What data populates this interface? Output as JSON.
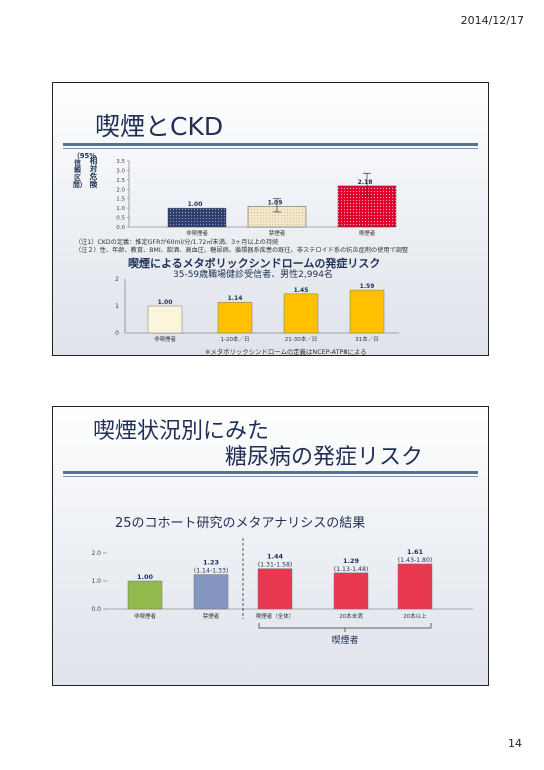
{
  "page": {
    "date": "2014/12/17",
    "number": "14"
  },
  "slide1": {
    "title": "喫煙とCKD",
    "y_axis_label_main": "相対危険",
    "y_axis_label_paren": "（95%信頼区間）",
    "notes": [
      "（注1）CKDの定義：推定GFRが60ml/分/1.72㎡未満、3ヶ月以上の持続",
      "（注２）性、年齢、教育、BMI、飲酒、高血圧、糖尿病、循環器系疾患の既往、非ステロイド系の抗炎症剤の使用で調整"
    ],
    "subtitle": "喫煙によるメタボリックシンドロームの発症リスク",
    "subtitle2": "35-59歳職場健診受信者、男性2,994名",
    "footnote": "※メタボリックシンドロームの定義はNCEP-ATPⅢによる"
  },
  "slide2": {
    "title_line1": "喫煙状況別にみた",
    "title_line2": "糖尿病の発症リスク",
    "subtitle": "25のコホート研究のメタアナリシスの結果",
    "group_label": "喫煙者"
  },
  "chart_data": [
    {
      "type": "bar",
      "title": "喫煙とCKD",
      "categories": [
        "非喫煙者",
        "禁煙者",
        "喫煙者"
      ],
      "values": [
        1.0,
        1.09,
        2.18
      ],
      "value_labels": [
        "1.00",
        "1.09",
        "2.18"
      ],
      "error_bars": [
        null,
        [
          0.8,
          1.5
        ],
        [
          1.65,
          2.85
        ]
      ],
      "yticks": [
        "0.0",
        "0.5",
        "1.0",
        "1.5",
        "2.0",
        "2.5",
        "3.0",
        "3.5"
      ],
      "ylim": [
        0,
        3.5
      ],
      "colors": [
        "#2e3d6b",
        "#f3e6c8",
        "#e0002a"
      ],
      "patterns": [
        "dots",
        "dots",
        "dots"
      ]
    },
    {
      "type": "bar",
      "title": "喫煙によるメタボリックシンドロームの発症リスク",
      "categories": [
        "非喫煙者",
        "1-20本／日",
        "21-30本／日",
        "31本／日"
      ],
      "values": [
        1.0,
        1.14,
        1.45,
        1.59
      ],
      "value_labels": [
        "1.00",
        "1.14",
        "1.45",
        "1.59"
      ],
      "yticks": [
        "0",
        "1",
        "2"
      ],
      "ylim": [
        0,
        2
      ],
      "colors": [
        "#fbf5dc",
        "#ffc000",
        "#ffc000",
        "#ffc000"
      ]
    },
    {
      "type": "bar",
      "title": "25のコホート研究のメタアナリシスの結果",
      "categories": [
        "非喫煙者",
        "禁煙者",
        "喫煙者（全体）",
        "20本未満",
        "20本以上"
      ],
      "values": [
        1.0,
        1.23,
        1.44,
        1.29,
        1.61
      ],
      "value_labels": [
        "1.00",
        "1.23",
        "1.44",
        "1.29",
        "1.61"
      ],
      "ci_labels": [
        "",
        "(1.14-1.33)",
        "(1.31-1.58)",
        "(1.13-1.48)",
        "(1.43-1.80)"
      ],
      "yticks": [
        "0.0",
        "1.0",
        "2.0"
      ],
      "ylim": [
        0,
        2.0
      ],
      "colors": [
        "#92b94b",
        "#8496bf",
        "#e8384f",
        "#e8384f",
        "#e8384f"
      ]
    }
  ]
}
